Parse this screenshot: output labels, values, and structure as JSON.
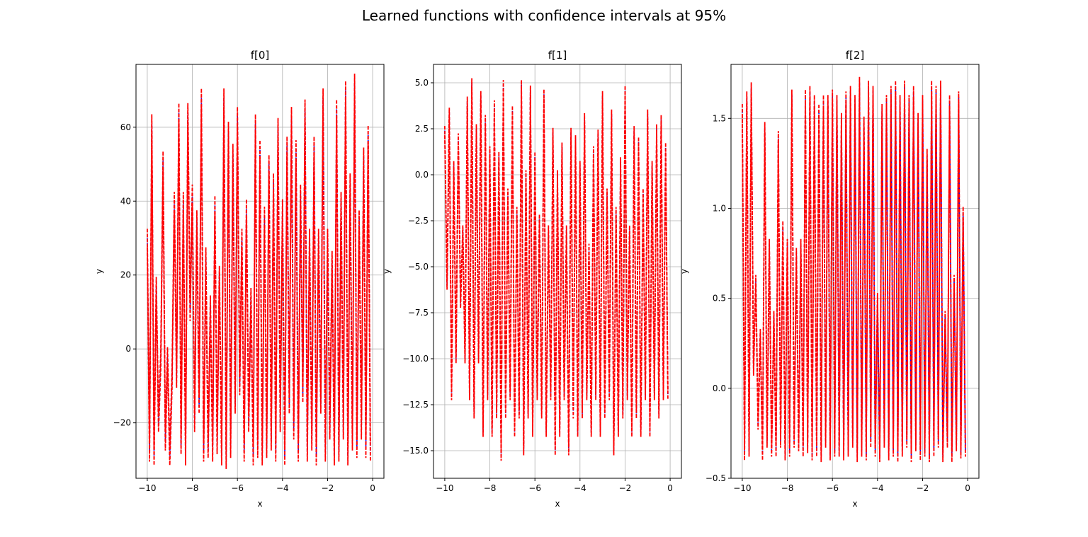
{
  "figure": {
    "title": "Learned functions with confidence intervals at 95%"
  },
  "colors": {
    "mean": "#0000ff",
    "bound": "#ff0000",
    "grid": "#b0b0b0",
    "axis": "#000000"
  },
  "chart_data": [
    {
      "type": "line",
      "title": "f[0]",
      "xlabel": "x",
      "ylabel": "y",
      "xlim": [
        -10.5,
        0.5
      ],
      "ylim": [
        -35,
        77
      ],
      "xticks": [
        -10,
        -8,
        -6,
        -4,
        -2,
        0
      ],
      "xtick_labels": [
        "−10",
        "−8",
        "−6",
        "−4",
        "−2",
        "0"
      ],
      "yticks": [
        -20,
        0,
        20,
        40,
        60
      ],
      "ytick_labels": [
        "−20",
        "0",
        "20",
        "40",
        "60"
      ],
      "grid": true,
      "series": [
        {
          "role": "mean",
          "style": "dashed",
          "color": "#0000ff"
        },
        {
          "role": "upper",
          "style": "dashed",
          "color": "#ff0000"
        },
        {
          "role": "lower",
          "style": "dashed",
          "color": "#ff0000"
        }
      ],
      "x": [
        -10.0,
        -9.9,
        -9.8,
        -9.7,
        -9.6,
        -9.5,
        -9.4,
        -9.3,
        -9.2,
        -9.1,
        -9.0,
        -8.9,
        -8.8,
        -8.7,
        -8.6,
        -8.5,
        -8.4,
        -8.3,
        -8.2,
        -8.1,
        -8.0,
        -7.9,
        -7.8,
        -7.7,
        -7.6,
        -7.5,
        -7.4,
        -7.3,
        -7.2,
        -7.1,
        -7.0,
        -6.9,
        -6.8,
        -6.7,
        -6.6,
        -6.5,
        -6.4,
        -6.3,
        -6.2,
        -6.1,
        -6.0,
        -5.9,
        -5.8,
        -5.7,
        -5.6,
        -5.5,
        -5.4,
        -5.3,
        -5.2,
        -5.1,
        -5.0,
        -4.9,
        -4.8,
        -4.7,
        -4.6,
        -4.5,
        -4.4,
        -4.3,
        -4.2,
        -4.1,
        -4.0,
        -3.9,
        -3.8,
        -3.7,
        -3.6,
        -3.5,
        -3.4,
        -3.3,
        -3.2,
        -3.1,
        -3.0,
        -2.9,
        -2.8,
        -2.7,
        -2.6,
        -2.5,
        -2.4,
        -2.3,
        -2.2,
        -2.1,
        -2.0,
        -1.9,
        -1.8,
        -1.7,
        -1.6,
        -1.5,
        -1.4,
        -1.3,
        -1.2,
        -1.1,
        -1.0,
        -0.9,
        -0.8,
        -0.7,
        -0.6,
        -0.5,
        -0.4,
        -0.3,
        -0.2,
        -0.1
      ],
      "y": [
        30,
        -28,
        61,
        -29,
        17,
        -20,
        -3,
        51,
        -25,
        -2,
        -29,
        -8,
        40,
        -8,
        64,
        -26,
        40,
        -29,
        64,
        10,
        42,
        -20,
        35,
        -15,
        68,
        -28,
        25,
        -27,
        12,
        -28,
        39,
        -26,
        20,
        -29,
        68,
        -30,
        59,
        -27,
        53,
        -15,
        63,
        -10,
        30,
        -28,
        38,
        -20,
        14,
        -29,
        61,
        -27,
        54,
        -29,
        36,
        -27,
        50,
        -25,
        45,
        -28,
        60,
        -20,
        38,
        -29,
        55,
        -15,
        63,
        -22,
        54,
        -28,
        42,
        -12,
        65,
        -28,
        30,
        -25,
        55,
        -29,
        30,
        -15,
        68,
        -28,
        30,
        -22,
        24,
        -29,
        65,
        -28,
        40,
        -22,
        70,
        -29,
        45,
        -25,
        72,
        -27,
        35,
        -22,
        52,
        -27,
        58,
        -28
      ],
      "band": 2.5
    },
    {
      "type": "line",
      "title": "f[1]",
      "xlabel": "x",
      "ylabel": "y",
      "xlim": [
        -10.5,
        0.5
      ],
      "ylim": [
        -16.5,
        6.0
      ],
      "xticks": [
        -10,
        -8,
        -6,
        -4,
        -2,
        0
      ],
      "xtick_labels": [
        "−10",
        "−8",
        "−6",
        "−4",
        "−2",
        "0"
      ],
      "yticks": [
        -15.0,
        -12.5,
        -10.0,
        -7.5,
        -5.0,
        -2.5,
        0.0,
        2.5,
        5.0
      ],
      "ytick_labels": [
        "−15.0",
        "−12.5",
        "−10.0",
        "−7.5",
        "−5.0",
        "−2.5",
        "0.0",
        "2.5",
        "5.0"
      ],
      "grid": true,
      "series": [
        {
          "role": "mean",
          "style": "dashed",
          "color": "#0000ff"
        },
        {
          "role": "upper",
          "style": "dashed",
          "color": "#ff0000"
        },
        {
          "role": "lower",
          "style": "dashed",
          "color": "#ff0000"
        }
      ],
      "x": [
        -10.0,
        -9.9,
        -9.8,
        -9.7,
        -9.6,
        -9.5,
        -9.4,
        -9.3,
        -9.2,
        -9.1,
        -9.0,
        -8.9,
        -8.8,
        -8.7,
        -8.6,
        -8.5,
        -8.4,
        -8.3,
        -8.2,
        -8.1,
        -8.0,
        -7.9,
        -7.8,
        -7.7,
        -7.6,
        -7.5,
        -7.4,
        -7.3,
        -7.2,
        -7.1,
        -7.0,
        -6.9,
        -6.8,
        -6.7,
        -6.6,
        -6.5,
        -6.4,
        -6.3,
        -6.2,
        -6.1,
        -6.0,
        -5.9,
        -5.8,
        -5.7,
        -5.6,
        -5.5,
        -5.4,
        -5.3,
        -5.2,
        -5.1,
        -5.0,
        -4.9,
        -4.8,
        -4.7,
        -4.6,
        -4.5,
        -4.4,
        -4.3,
        -4.2,
        -4.1,
        -4.0,
        -3.9,
        -3.8,
        -3.7,
        -3.6,
        -3.5,
        -3.4,
        -3.3,
        -3.2,
        -3.1,
        -3.0,
        -2.9,
        -2.8,
        -2.7,
        -2.6,
        -2.5,
        -2.4,
        -2.3,
        -2.2,
        -2.1,
        -2.0,
        -1.9,
        -1.8,
        -1.7,
        -1.6,
        -1.5,
        -1.4,
        -1.3,
        -1.2,
        -1.1,
        -1.0,
        -0.9,
        -0.8,
        -0.7,
        -0.6,
        -0.5,
        -0.4,
        -0.3,
        -0.2,
        -0.1
      ],
      "y": [
        2.4,
        -6,
        3.4,
        -12,
        0.5,
        -10,
        2,
        -7,
        -3,
        -10,
        4,
        -12,
        5,
        -13,
        2.5,
        -10,
        4.3,
        -14,
        3,
        -12,
        1.3,
        -14,
        3.8,
        -13,
        1,
        -15.3,
        4.9,
        -13,
        -1,
        -12,
        3.5,
        -14,
        -2,
        -13,
        4.9,
        -15,
        0,
        -13,
        4.6,
        -14,
        1,
        -12,
        -2.4,
        -13,
        4.4,
        -14,
        -3,
        -12,
        2.3,
        -15,
        0,
        -14,
        1.5,
        -12,
        -3,
        -15,
        2.3,
        -13,
        1.9,
        -14,
        0.5,
        -13,
        3.1,
        -12,
        -4,
        -14,
        1.3,
        -12,
        2.2,
        -14,
        4.3,
        -13,
        -1,
        -12,
        3.3,
        -15,
        -2,
        -14,
        0.7,
        -13,
        4.6,
        -12,
        -3,
        -14,
        2.4,
        -13,
        1.8,
        -14,
        -1,
        -12,
        3.3,
        -14,
        0.5,
        -12,
        2.5,
        -13,
        3.0,
        -12,
        1.5,
        -12
      ],
      "band": 0.25
    },
    {
      "type": "line",
      "title": "f[2]",
      "xlabel": "x",
      "ylabel": "y",
      "xlim": [
        -10.5,
        0.5
      ],
      "ylim": [
        -0.5,
        1.8
      ],
      "xticks": [
        -10,
        -8,
        -6,
        -4,
        -2,
        0
      ],
      "xtick_labels": [
        "−10",
        "−8",
        "−6",
        "−4",
        "−2",
        "0"
      ],
      "yticks": [
        -0.5,
        0.0,
        0.5,
        1.0,
        1.5
      ],
      "ytick_labels": [
        "−0.5",
        "0.0",
        "0.5",
        "1.0",
        "1.5"
      ],
      "grid": true,
      "series": [
        {
          "role": "mean",
          "style": "dashed",
          "color": "#0000ff"
        },
        {
          "role": "upper",
          "style": "dashed",
          "color": "#ff0000"
        },
        {
          "role": "lower",
          "style": "dashed",
          "color": "#ff0000"
        }
      ],
      "x": [
        -10.0,
        -9.9,
        -9.8,
        -9.7,
        -9.6,
        -9.5,
        -9.4,
        -9.3,
        -9.2,
        -9.1,
        -9.0,
        -8.9,
        -8.8,
        -8.7,
        -8.6,
        -8.5,
        -8.4,
        -8.3,
        -8.2,
        -8.1,
        -8.0,
        -7.9,
        -7.8,
        -7.7,
        -7.6,
        -7.5,
        -7.4,
        -7.3,
        -7.2,
        -7.1,
        -7.0,
        -6.9,
        -6.8,
        -6.7,
        -6.6,
        -6.5,
        -6.4,
        -6.3,
        -6.2,
        -6.1,
        -6.0,
        -5.9,
        -5.8,
        -5.7,
        -5.6,
        -5.5,
        -5.4,
        -5.3,
        -5.2,
        -5.1,
        -5.0,
        -4.9,
        -4.8,
        -4.7,
        -4.6,
        -4.5,
        -4.4,
        -4.3,
        -4.2,
        -4.1,
        -4.0,
        -3.9,
        -3.8,
        -3.7,
        -3.6,
        -3.5,
        -3.4,
        -3.3,
        -3.2,
        -3.1,
        -3.0,
        -2.9,
        -2.8,
        -2.7,
        -2.6,
        -2.5,
        -2.4,
        -2.3,
        -2.2,
        -2.1,
        -2.0,
        -1.9,
        -1.8,
        -1.7,
        -1.6,
        -1.5,
        -1.4,
        -1.3,
        -1.2,
        -1.1,
        -1.0,
        -0.9,
        -0.8,
        -0.7,
        -0.6,
        -0.5,
        -0.4,
        -0.3,
        -0.2,
        -0.1
      ],
      "y": [
        1.55,
        -0.37,
        1.62,
        -0.35,
        1.67,
        0.1,
        0.6,
        -0.2,
        0.3,
        -0.37,
        1.45,
        -0.3,
        0.8,
        -0.35,
        0.4,
        -0.35,
        1.4,
        -0.3,
        0.9,
        -0.37,
        0.8,
        -0.35,
        1.63,
        -0.3,
        0.75,
        -0.32,
        0.8,
        -0.35,
        1.63,
        -0.33,
        1.65,
        -0.37,
        1.6,
        -0.35,
        1.55,
        -0.38,
        1.6,
        -0.3,
        1.6,
        -0.37,
        1.63,
        -0.35,
        1.6,
        -0.35,
        1.5,
        -0.37,
        1.62,
        -0.35,
        1.65,
        -0.3,
        1.6,
        -0.38,
        1.7,
        -0.35,
        1.48,
        -0.37,
        1.68,
        -0.3,
        1.65,
        -0.35,
        0.5,
        -0.38,
        1.55,
        -0.3,
        1.6,
        -0.37,
        1.65,
        -0.35,
        1.68,
        -0.38,
        1.6,
        -0.35,
        1.68,
        -0.3,
        1.6,
        -0.38,
        1.65,
        -0.32,
        1.5,
        -0.37,
        1.6,
        -0.35,
        1.3,
        -0.38,
        1.68,
        -0.35,
        1.65,
        -0.3,
        1.68,
        -0.38,
        0.4,
        -0.3,
        1.6,
        -0.38,
        0.6,
        -0.32,
        1.62,
        -0.36,
        0.98,
        -0.35
      ],
      "band": 0.03
    }
  ]
}
